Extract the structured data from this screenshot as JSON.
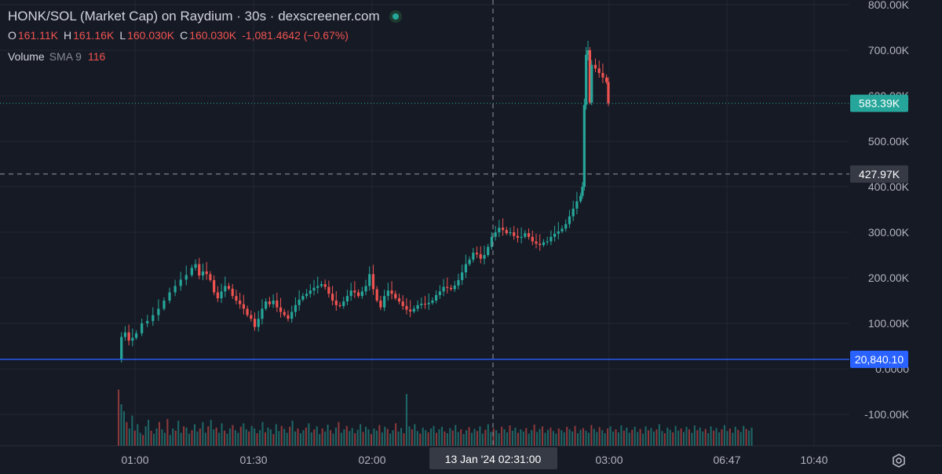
{
  "legend": {
    "title": "HONK/SOL (Market Cap) on Raydium · 30s · dexscreener.com",
    "o_key": "O",
    "o_val": "161.11K",
    "h_key": "H",
    "h_val": "161.16K",
    "l_key": "L",
    "l_val": "160.030K",
    "c_key": "C",
    "c_val": "160.030K",
    "change": "-1,081.4642 (−0.67%)",
    "volume_label": "Volume",
    "sma_label": "SMA 9",
    "volume_value": "116"
  },
  "colors": {
    "background": "#161a25",
    "up": "#26a69a",
    "down": "#ef5350",
    "price_line": "#26a69a",
    "blue_line": "#2962ff"
  },
  "crosshair": {
    "price_label": "427.97K",
    "time_label": "13 Jan '24   02:31:00"
  },
  "tags": {
    "last_price": "583.39K",
    "blue_level": "20,840.10"
  },
  "settings_icon": "gear-icon",
  "chart_data": {
    "type": "candlestick",
    "y_ticks": [
      "800.00K",
      "700.00K",
      "600.00K",
      "500.00K",
      "400.00K",
      "300.00K",
      "200.00K",
      "100.00K",
      "0.0000",
      "-100.00K"
    ],
    "x_ticks": [
      "01:00",
      "01:30",
      "02:00",
      "03:00",
      "06:47",
      "10:40"
    ],
    "ylim": [
      -150000,
      800000
    ],
    "last_price": 583390,
    "blue_level": 20840.1,
    "crosshair_price": 427970,
    "close_series": [
      [
        0.0,
        20000
      ],
      [
        0.02,
        70000
      ],
      [
        0.04,
        80000
      ],
      [
        0.06,
        62000
      ],
      [
        0.08,
        68000
      ],
      [
        0.1,
        78000
      ],
      [
        0.13,
        100000
      ],
      [
        0.16,
        105000
      ],
      [
        0.19,
        118000
      ],
      [
        0.22,
        132000
      ],
      [
        0.25,
        150000
      ],
      [
        0.28,
        168000
      ],
      [
        0.31,
        182000
      ],
      [
        0.34,
        196000
      ],
      [
        0.37,
        206000
      ],
      [
        0.4,
        222000
      ],
      [
        0.42,
        230000
      ],
      [
        0.44,
        205000
      ],
      [
        0.46,
        214000
      ],
      [
        0.48,
        208000
      ],
      [
        0.5,
        195000
      ],
      [
        0.52,
        168000
      ],
      [
        0.54,
        155000
      ],
      [
        0.56,
        170000
      ],
      [
        0.58,
        182000
      ],
      [
        0.6,
        176000
      ],
      [
        0.62,
        160000
      ],
      [
        0.64,
        150000
      ],
      [
        0.66,
        142000
      ],
      [
        0.68,
        132000
      ],
      [
        0.7,
        118000
      ],
      [
        0.72,
        110000
      ],
      [
        0.74,
        92000
      ],
      [
        0.76,
        110000
      ],
      [
        0.78,
        132000
      ],
      [
        0.8,
        148000
      ],
      [
        0.82,
        142000
      ],
      [
        0.84,
        150000
      ],
      [
        0.86,
        135000
      ],
      [
        0.88,
        125000
      ],
      [
        0.9,
        118000
      ],
      [
        0.92,
        110000
      ],
      [
        0.94,
        125000
      ],
      [
        0.96,
        140000
      ],
      [
        0.98,
        152000
      ],
      [
        1.0,
        160000
      ],
      [
        1.02,
        165000
      ],
      [
        1.04,
        172000
      ],
      [
        1.06,
        178000
      ],
      [
        1.08,
        182000
      ],
      [
        1.1,
        186000
      ],
      [
        1.12,
        180000
      ],
      [
        1.14,
        165000
      ],
      [
        1.16,
        150000
      ],
      [
        1.18,
        140000
      ],
      [
        1.2,
        138000
      ],
      [
        1.22,
        148000
      ],
      [
        1.24,
        160000
      ],
      [
        1.26,
        172000
      ],
      [
        1.28,
        168000
      ],
      [
        1.3,
        160000
      ],
      [
        1.32,
        170000
      ],
      [
        1.34,
        182000
      ],
      [
        1.36,
        208000
      ],
      [
        1.38,
        175000
      ],
      [
        1.4,
        150000
      ],
      [
        1.42,
        135000
      ],
      [
        1.44,
        160000
      ],
      [
        1.46,
        172000
      ],
      [
        1.48,
        165000
      ],
      [
        1.5,
        155000
      ],
      [
        1.52,
        148000
      ],
      [
        1.54,
        138000
      ],
      [
        1.56,
        130000
      ],
      [
        1.58,
        126000
      ],
      [
        1.6,
        132000
      ],
      [
        1.62,
        140000
      ],
      [
        1.64,
        143000
      ],
      [
        1.66,
        142000
      ],
      [
        1.68,
        145000
      ],
      [
        1.7,
        150000
      ],
      [
        1.72,
        162000
      ],
      [
        1.74,
        170000
      ],
      [
        1.76,
        180000
      ],
      [
        1.78,
        178000
      ],
      [
        1.8,
        175000
      ],
      [
        1.82,
        183000
      ],
      [
        1.84,
        195000
      ],
      [
        1.86,
        212000
      ],
      [
        1.88,
        230000
      ],
      [
        1.9,
        240000
      ],
      [
        1.92,
        255000
      ],
      [
        1.94,
        252000
      ],
      [
        1.96,
        242000
      ],
      [
        1.98,
        250000
      ],
      [
        2.0,
        268000
      ],
      [
        2.02,
        290000
      ],
      [
        2.04,
        300000
      ],
      [
        2.06,
        310000
      ],
      [
        2.08,
        305000
      ],
      [
        2.1,
        298000
      ],
      [
        2.12,
        300000
      ],
      [
        2.14,
        292000
      ],
      [
        2.16,
        288000
      ],
      [
        2.18,
        290000
      ],
      [
        2.2,
        298000
      ],
      [
        2.22,
        290000
      ],
      [
        2.24,
        280000
      ],
      [
        2.26,
        275000
      ],
      [
        2.28,
        272000
      ],
      [
        2.3,
        278000
      ],
      [
        2.32,
        280000
      ],
      [
        2.34,
        290000
      ],
      [
        2.36,
        297000
      ],
      [
        2.38,
        302000
      ],
      [
        2.4,
        308000
      ],
      [
        2.42,
        318000
      ],
      [
        2.44,
        335000
      ],
      [
        2.46,
        352000
      ],
      [
        2.48,
        368000
      ],
      [
        2.5,
        380000
      ],
      [
        2.51,
        400000
      ],
      [
        2.52,
        580000
      ],
      [
        2.53,
        690000
      ],
      [
        2.54,
        700000
      ],
      [
        2.55,
        585000
      ],
      [
        2.56,
        668000
      ],
      [
        2.58,
        660000
      ],
      [
        2.6,
        650000
      ],
      [
        2.62,
        640000
      ],
      [
        2.64,
        630000
      ],
      [
        2.65,
        583390
      ]
    ],
    "volumes": [
      130,
      96,
      80,
      55,
      40,
      70,
      35,
      50,
      30,
      25,
      45,
      60,
      35,
      28,
      40,
      55,
      38,
      30,
      62,
      25,
      40,
      35,
      58,
      30,
      45,
      42,
      28,
      36,
      50,
      33,
      40,
      55,
      30,
      45,
      60,
      38,
      42,
      30,
      52,
      35,
      28,
      40,
      48,
      36,
      30,
      44,
      52,
      38,
      33,
      46,
      40,
      29,
      36,
      55,
      31,
      42,
      38,
      27,
      50,
      34,
      46,
      39,
      30,
      44,
      58,
      33,
      40,
      29,
      36,
      42,
      52,
      31,
      38,
      45,
      27,
      40,
      33,
      49,
      36,
      28,
      42,
      55,
      30,
      38,
      46,
      34,
      41,
      29,
      37,
      50,
      32,
      44,
      38,
      27,
      40,
      35,
      48,
      31,
      44,
      39,
      28,
      36,
      52,
      33,
      41,
      29,
      120,
      45,
      38,
      50,
      34,
      28,
      42,
      36,
      31,
      40,
      46,
      30,
      38,
      44,
      33,
      29,
      41,
      35,
      48,
      32,
      38,
      27,
      36,
      43,
      30,
      39,
      34,
      45,
      28,
      37,
      50,
      32,
      40,
      36,
      29,
      44,
      38,
      31,
      47,
      35,
      42,
      30,
      38,
      33,
      41,
      28,
      36,
      49,
      32,
      39,
      45,
      30,
      37,
      42,
      34,
      28,
      40,
      36,
      31,
      44,
      38,
      33,
      46,
      29,
      37,
      41,
      35,
      30,
      48,
      39,
      32,
      43,
      36,
      29,
      40,
      45,
      33,
      38,
      31,
      47,
      35,
      42,
      30,
      37,
      44,
      32,
      39,
      28,
      45,
      36,
      41,
      33,
      38,
      50,
      34,
      29,
      42,
      37,
      31,
      46,
      35,
      40,
      32,
      44,
      38,
      30,
      47,
      36,
      42,
      33,
      39,
      29,
      45,
      35,
      41,
      31,
      38,
      48,
      34,
      40,
      30,
      44,
      37,
      32,
      46,
      39,
      35,
      42
    ]
  }
}
